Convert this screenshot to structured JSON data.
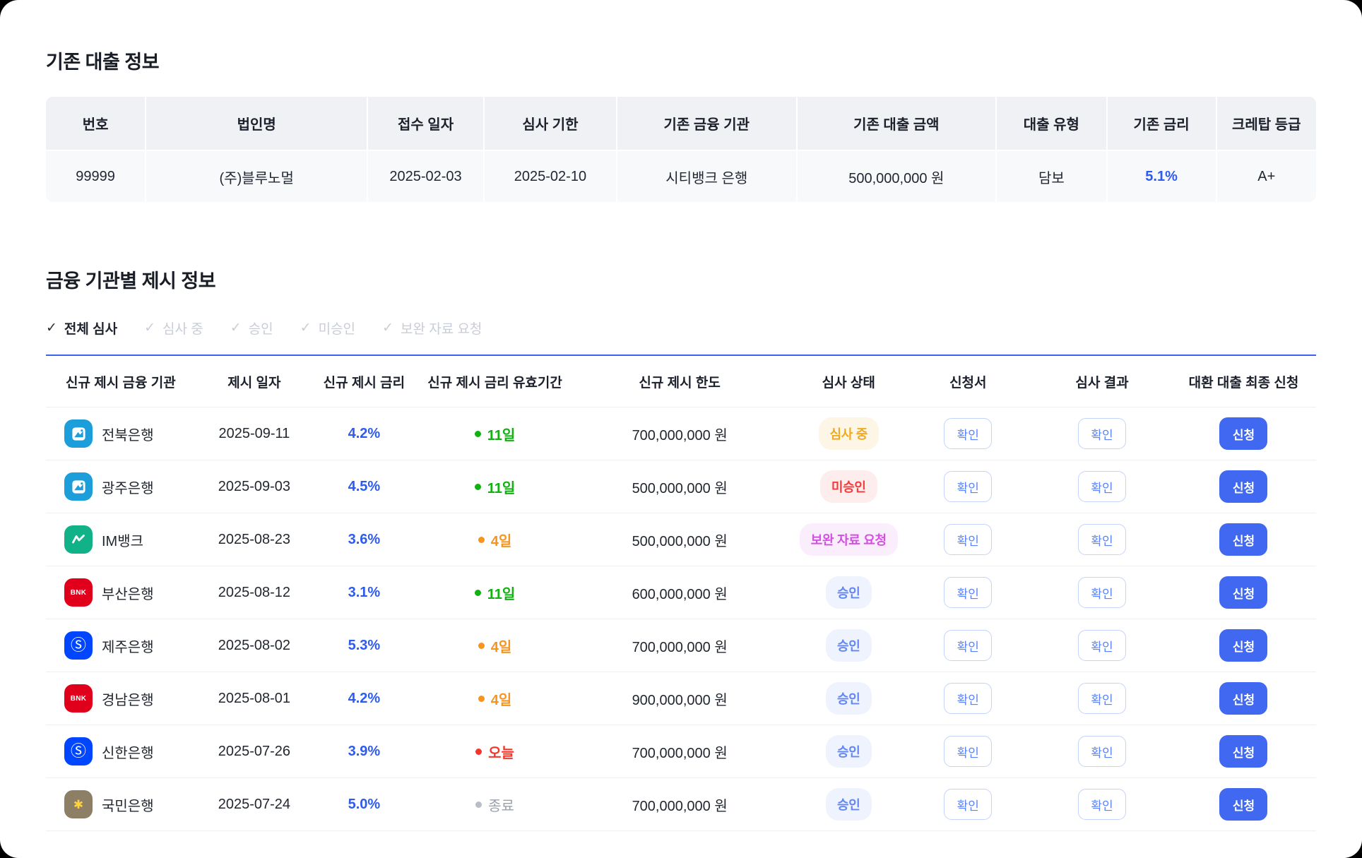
{
  "existing_loan": {
    "title": "기존 대출 정보",
    "columns": [
      "번호",
      "법인명",
      "접수 일자",
      "심사 기한",
      "기존 금융 기관",
      "기존 대출 금액",
      "대출 유형",
      "기존 금리",
      "크레탑 등급"
    ],
    "values": [
      "99999",
      "(주)블루노멀",
      "2025-02-03",
      "2025-02-10",
      "시티뱅크 은행",
      "500,000,000 원",
      "담보",
      "5.1%",
      "A+"
    ],
    "accent_value_index": 7
  },
  "offers": {
    "title": "금융 기관별 제시 정보",
    "filters": [
      {
        "label": "전체 심사",
        "active": true
      },
      {
        "label": "심사 중",
        "active": false
      },
      {
        "label": "승인",
        "active": false
      },
      {
        "label": "미승인",
        "active": false
      },
      {
        "label": "보완 자료 요청",
        "active": false
      }
    ],
    "columns": [
      "신규 제시 금융 기관",
      "제시 일자",
      "신규 제시 금리",
      "신규 제시 금리 유효기간",
      "신규 제시 한도",
      "심사 상태",
      "신청서",
      "심사 결과",
      "대환 대출 최종 신청"
    ],
    "buttons": {
      "confirm": "확인",
      "apply": "신청"
    },
    "rows": [
      {
        "bank": "전북은행",
        "icon": "jb-bank-icon",
        "icon_color": "#1b9ed9",
        "date": "2025-09-11",
        "rate": "4.2%",
        "validity": "11일",
        "validity_state": "green",
        "limit": "700,000,000 원",
        "status": "심사 중",
        "status_state": "reviewing"
      },
      {
        "bank": "광주은행",
        "icon": "jb-bank-icon",
        "icon_color": "#1b9ed9",
        "date": "2025-09-03",
        "rate": "4.5%",
        "validity": "11일",
        "validity_state": "green",
        "limit": "500,000,000 원",
        "status": "미승인",
        "status_state": "rejected"
      },
      {
        "bank": "IM뱅크",
        "icon": "im-bank-icon",
        "icon_color": "#12b289",
        "date": "2025-08-23",
        "rate": "3.6%",
        "validity": "4일",
        "validity_state": "orange",
        "limit": "500,000,000 원",
        "status": "보완 자료 요청",
        "status_state": "docs-requested"
      },
      {
        "bank": "부산은행",
        "icon": "bnk-bank-icon",
        "icon_color": "#e0001b",
        "date": "2025-08-12",
        "rate": "3.1%",
        "validity": "11일",
        "validity_state": "green",
        "limit": "600,000,000 원",
        "status": "승인",
        "status_state": "approved"
      },
      {
        "bank": "제주은행",
        "icon": "shinhan-bank-icon",
        "icon_color": "#0046ff",
        "date": "2025-08-02",
        "rate": "5.3%",
        "validity": "4일",
        "validity_state": "orange",
        "limit": "700,000,000 원",
        "status": "승인",
        "status_state": "approved"
      },
      {
        "bank": "경남은행",
        "icon": "bnk-bank-icon",
        "icon_color": "#e0001b",
        "date": "2025-08-01",
        "rate": "4.2%",
        "validity": "4일",
        "validity_state": "orange",
        "limit": "900,000,000 원",
        "status": "승인",
        "status_state": "approved"
      },
      {
        "bank": "신한은행",
        "icon": "shinhan-bank-icon",
        "icon_color": "#0046ff",
        "date": "2025-07-26",
        "rate": "3.9%",
        "validity": "오늘",
        "validity_state": "red",
        "limit": "700,000,000 원",
        "status": "승인",
        "status_state": "approved"
      },
      {
        "bank": "국민은행",
        "icon": "kb-bank-icon",
        "icon_color": "#8d7f66",
        "date": "2025-07-24",
        "rate": "5.0%",
        "validity": "종료",
        "validity_state": "gray",
        "limit": "700,000,000 원",
        "status": "승인",
        "status_state": "approved"
      }
    ]
  },
  "colors": {
    "accent_blue": "#4168f0",
    "rate_blue": "#2d5bf0",
    "filter_line_blue": "#3c62f3",
    "status_reviewing": "#f2a91e",
    "status_rejected": "#f53b3b",
    "status_docs_requested": "#d44fe3",
    "status_approved": "#6486f3",
    "validity_green": "#12b112",
    "validity_orange": "#f7941e",
    "validity_red": "#f2362b",
    "validity_gray": "#9aa1ac"
  }
}
